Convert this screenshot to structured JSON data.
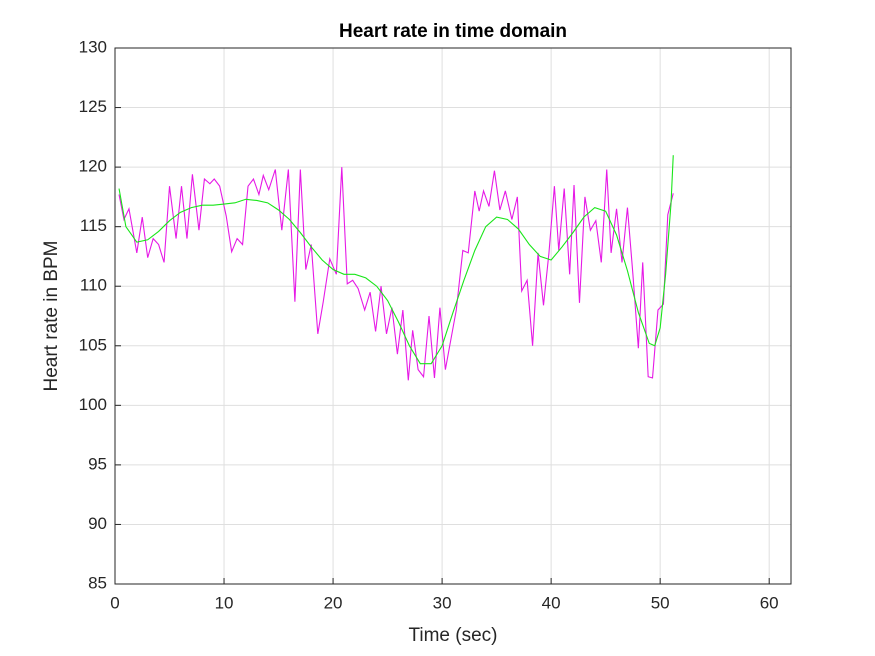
{
  "chart_data": {
    "type": "line",
    "title": "Heart rate in time domain",
    "x_label": "Time (sec)",
    "y_label": "Heart rate in BPM",
    "xlim": [
      0,
      62
    ],
    "xticks": [
      0,
      10,
      20,
      30,
      40,
      50,
      60
    ],
    "ylim": [
      85,
      130
    ],
    "yticks": [
      85,
      90,
      95,
      100,
      105,
      110,
      115,
      120,
      125,
      130
    ],
    "grid": true,
    "series": [
      {
        "color": "#e619e6",
        "x": [
          0.37,
          0.82,
          1.28,
          2.0,
          2.5,
          3.0,
          3.5,
          4.0,
          4.5,
          5.0,
          5.6,
          6.1,
          6.6,
          7.1,
          7.7,
          8.2,
          8.7,
          9.1,
          9.6,
          10.2,
          10.7,
          11.2,
          11.7,
          12.2,
          12.7,
          13.2,
          13.6,
          14.1,
          14.7,
          15.3,
          15.9,
          16.5,
          17.0,
          17.5,
          18.0,
          18.6,
          19.1,
          19.7,
          20.3,
          20.8,
          21.3,
          21.8,
          22.3,
          22.9,
          23.4,
          23.9,
          24.4,
          24.9,
          25.4,
          25.9,
          26.4,
          26.9,
          27.3,
          27.8,
          28.3,
          28.8,
          29.3,
          29.8,
          30.3,
          30.8,
          31.3,
          31.9,
          32.4,
          33.0,
          33.4,
          33.8,
          34.3,
          34.8,
          35.3,
          35.8,
          36.4,
          36.9,
          37.3,
          37.8,
          38.3,
          38.8,
          39.3,
          39.8,
          40.3,
          40.7,
          41.2,
          41.7,
          42.1,
          42.6,
          43.1,
          43.6,
          44.1,
          44.6,
          45.1,
          45.5,
          46.0,
          46.5,
          47.0,
          47.5,
          48.0,
          48.4,
          48.9,
          49.3,
          49.8,
          50.3,
          50.7,
          51.2
        ],
        "values": [
          117.7,
          115.6,
          116.5,
          112.8,
          115.8,
          112.4,
          114.0,
          113.5,
          112.0,
          118.4,
          114.0,
          118.4,
          114.0,
          119.4,
          114.7,
          119.0,
          118.6,
          119.0,
          118.4,
          115.9,
          112.9,
          114.0,
          113.5,
          118.4,
          119.0,
          117.7,
          119.3,
          118.1,
          119.8,
          114.7,
          119.8,
          108.7,
          119.8,
          111.4,
          113.5,
          106.0,
          108.7,
          112.3,
          111.0,
          120.0,
          110.2,
          110.5,
          109.8,
          108.0,
          109.5,
          106.2,
          110.0,
          106.0,
          108.2,
          104.3,
          108.0,
          102.1,
          106.3,
          103.0,
          102.4,
          107.5,
          102.3,
          108.2,
          103.0,
          105.5,
          108.0,
          113.0,
          112.8,
          118.0,
          116.3,
          118.0,
          116.7,
          119.7,
          116.4,
          118.0,
          115.6,
          117.5,
          109.6,
          110.5,
          105.0,
          112.8,
          108.4,
          112.8,
          118.4,
          113.0,
          118.2,
          111.0,
          118.5,
          108.6,
          117.5,
          114.7,
          115.5,
          112.0,
          119.8,
          112.8,
          116.5,
          112.0,
          116.6,
          111.0,
          104.8,
          112.0,
          102.4,
          102.3,
          108.0,
          108.5,
          116.0,
          117.8
        ]
      },
      {
        "color": "#19e619",
        "x": [
          0.37,
          1,
          2,
          3,
          4,
          5,
          6,
          7,
          8,
          9,
          10,
          11,
          12,
          13,
          14,
          15,
          16,
          17,
          18,
          19,
          20,
          21,
          22,
          23,
          24,
          25,
          26,
          27,
          28,
          29,
          30,
          31,
          32,
          33,
          34,
          35,
          36,
          37,
          38,
          39,
          40,
          41,
          42,
          43,
          44,
          45,
          46,
          47,
          48,
          49,
          49.5,
          50,
          50.5,
          51,
          51.2
        ],
        "values": [
          118.2,
          115,
          113.7,
          113.9,
          114.6,
          115.5,
          116.2,
          116.6,
          116.8,
          116.8,
          116.9,
          117.0,
          117.3,
          117.2,
          117.0,
          116.4,
          115.6,
          114.5,
          113.3,
          112.2,
          111.4,
          111.0,
          111.0,
          110.7,
          110.0,
          108.8,
          107.0,
          105.0,
          103.5,
          103.5,
          105.0,
          107.8,
          110.5,
          113.0,
          115.0,
          115.8,
          115.6,
          114.8,
          113.5,
          112.5,
          112.2,
          113.3,
          114.5,
          115.8,
          116.6,
          116.3,
          114.3,
          111.3,
          107.8,
          105.2,
          105.0,
          106.5,
          111,
          117.0,
          121.0
        ]
      }
    ]
  }
}
